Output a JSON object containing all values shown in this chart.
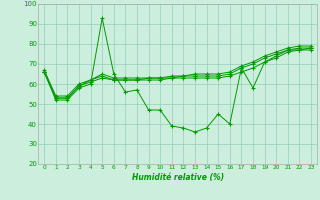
{
  "xlabel": "Humidité relative (%)",
  "background_color": "#cceedd",
  "grid_color": "#99ccbb",
  "line_color": "#009900",
  "marker": "+",
  "xmin": -0.5,
  "xmax": 23.5,
  "ymin": 20,
  "ymax": 100,
  "yticks": [
    20,
    30,
    40,
    50,
    60,
    70,
    80,
    90,
    100
  ],
  "xticks": [
    0,
    1,
    2,
    3,
    4,
    5,
    6,
    7,
    8,
    9,
    10,
    11,
    12,
    13,
    14,
    15,
    16,
    17,
    18,
    19,
    20,
    21,
    22,
    23
  ],
  "series": [
    [
      66,
      52,
      52,
      58,
      60,
      93,
      65,
      56,
      57,
      47,
      47,
      39,
      38,
      36,
      38,
      45,
      40,
      68,
      58,
      71,
      74,
      77,
      77,
      77
    ],
    [
      66,
      53,
      53,
      59,
      61,
      63,
      62,
      62,
      62,
      62,
      62,
      63,
      63,
      63,
      63,
      63,
      64,
      66,
      68,
      71,
      73,
      76,
      77,
      78
    ],
    [
      66,
      53,
      53,
      59,
      62,
      64,
      62,
      62,
      62,
      63,
      63,
      63,
      64,
      64,
      64,
      64,
      65,
      68,
      70,
      73,
      75,
      77,
      78,
      78
    ],
    [
      67,
      54,
      54,
      60,
      62,
      65,
      63,
      63,
      63,
      63,
      63,
      64,
      64,
      65,
      65,
      65,
      66,
      69,
      71,
      74,
      76,
      78,
      79,
      79
    ]
  ]
}
